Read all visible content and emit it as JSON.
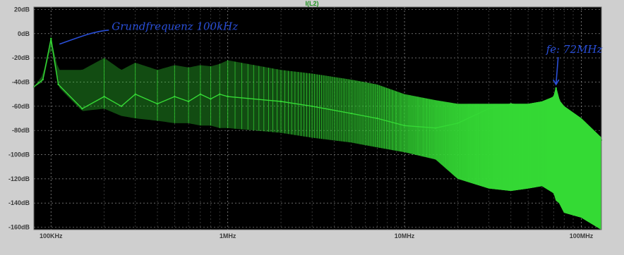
{
  "chart_data": {
    "type": "line",
    "title": "I(L2)",
    "xlabel": "",
    "ylabel": "",
    "x_scale": "log",
    "xlim": [
      80000,
      130000000
    ],
    "ylim": [
      -162,
      22
    ],
    "grid": true,
    "x_ticks": [
      {
        "value": 100000,
        "label": "100KHz"
      },
      {
        "value": 1000000,
        "label": "1MHz"
      },
      {
        "value": 10000000,
        "label": "10MHz"
      },
      {
        "value": 100000000,
        "label": "100MHz"
      }
    ],
    "y_ticks": [
      {
        "value": 20,
        "label": "20dB"
      },
      {
        "value": 0,
        "label": "0dB"
      },
      {
        "value": -20,
        "label": "-20dB"
      },
      {
        "value": -40,
        "label": "-40dB"
      },
      {
        "value": -60,
        "label": "-60dB"
      },
      {
        "value": -80,
        "label": "-80dB"
      },
      {
        "value": -100,
        "label": "-100dB"
      },
      {
        "value": -120,
        "label": "-120dB"
      },
      {
        "value": -140,
        "label": "-140dB"
      },
      {
        "value": -160,
        "label": "-160dB"
      }
    ],
    "series": [
      {
        "name": "I(L2)",
        "color": "#35d935",
        "x": [
          80000,
          90000,
          100000,
          110000,
          150000,
          200000,
          250000,
          300000,
          400000,
          500000,
          600000,
          700000,
          800000,
          900000,
          1000000,
          2000000,
          3000000,
          5000000,
          7000000,
          10000000,
          15000000,
          20000000,
          30000000,
          40000000,
          50000000,
          60000000,
          70000000,
          72000000,
          75000000,
          80000000,
          100000000,
          130000000
        ],
        "y": [
          -44,
          -38,
          -4,
          -42,
          -62,
          -52,
          -60,
          -50,
          -58,
          -52,
          -56,
          -50,
          -54,
          -50,
          -52,
          -56,
          -60,
          -66,
          -70,
          -76,
          -78,
          -74,
          -62,
          -58,
          -60,
          -58,
          -52,
          -45,
          -55,
          -62,
          -72,
          -88
        ],
        "peak_envelope": [
          -44,
          -34,
          -4,
          -30,
          -30,
          -20,
          -30,
          -24,
          -30,
          -26,
          -28,
          -26,
          -27,
          -25,
          -22,
          -30,
          -33,
          -38,
          -42,
          -50,
          -55,
          -58,
          -58,
          -58,
          -58,
          -56,
          -52,
          -45,
          -55,
          -60,
          -70,
          -86
        ],
        "floor_envelope": [
          -44,
          -40,
          -10,
          -44,
          -64,
          -62,
          -68,
          -70,
          -72,
          -74,
          -74,
          -76,
          -76,
          -78,
          -78,
          -82,
          -86,
          -90,
          -94,
          -98,
          -104,
          -120,
          -128,
          -130,
          -128,
          -126,
          -132,
          -138,
          -140,
          -148,
          -152,
          -162
        ]
      }
    ],
    "annotations": [
      {
        "text": "Grundfrequenz 100kHz",
        "x": 100000,
        "y": -4
      },
      {
        "text": "fe: 72MHz",
        "x": 72000000,
        "y": -45
      }
    ]
  }
}
